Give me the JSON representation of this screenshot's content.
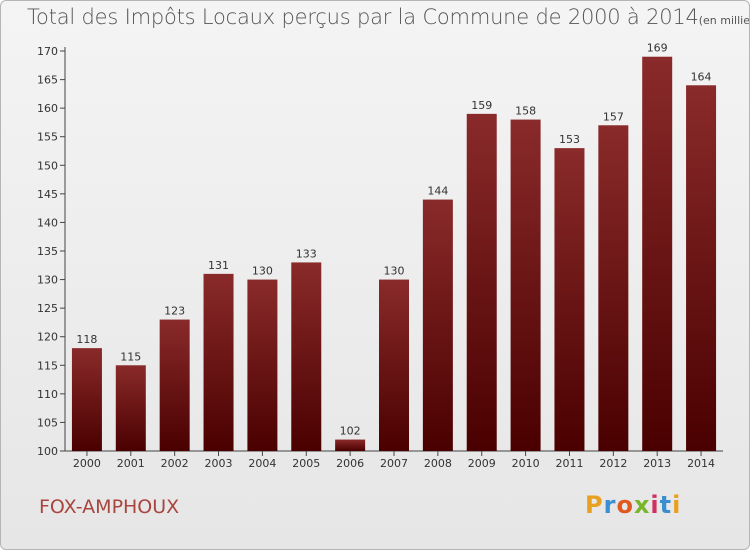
{
  "chart_data": {
    "type": "bar",
    "title": "Total des Impôts Locaux perçus par la Commune de 2000 à 2014",
    "unit_note": "(en milliers d'€)",
    "categories": [
      "2000",
      "2001",
      "2002",
      "2003",
      "2004",
      "2005",
      "2006",
      "2007",
      "2008",
      "2009",
      "2010",
      "2011",
      "2012",
      "2013",
      "2014"
    ],
    "values": [
      118,
      115,
      123,
      131,
      130,
      133,
      102,
      130,
      144,
      159,
      158,
      153,
      157,
      169,
      164
    ],
    "ylim": [
      100,
      170
    ],
    "yticks": [
      100,
      105,
      110,
      115,
      120,
      125,
      130,
      135,
      140,
      145,
      150,
      155,
      160,
      165,
      170
    ],
    "xlabel": "",
    "ylabel": "",
    "grid": false,
    "bar_color_top": "#8a2a2a",
    "bar_color_bottom": "#4a0000"
  },
  "commune": "FOX-AMPHOUX",
  "brand": {
    "letters": [
      "P",
      "r",
      "o",
      "x",
      "i",
      "t",
      "i"
    ],
    "colors": [
      "#e8a020",
      "#3a8fd0",
      "#e05a20",
      "#7ab42a",
      "#d03060",
      "#3a8fd0",
      "#e8a020"
    ]
  }
}
